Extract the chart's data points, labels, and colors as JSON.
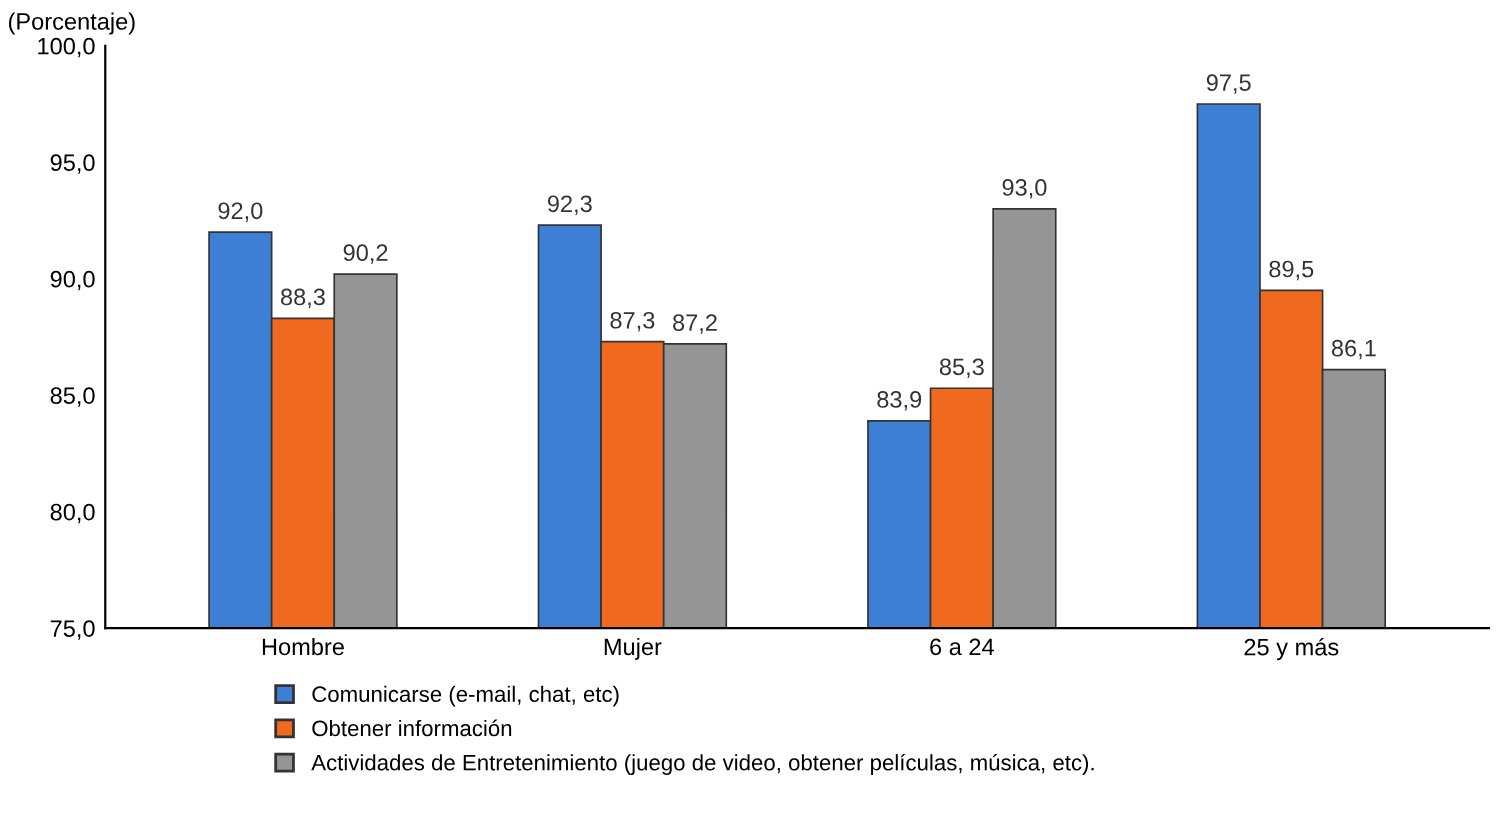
{
  "chart_data": {
    "type": "bar",
    "ylabel": "(Porcentaje)",
    "categories": [
      "Hombre",
      "Mujer",
      "6 a 24",
      "25 y más"
    ],
    "series": [
      {
        "name": "Comunicarse (e-mail, chat, etc)",
        "color": "#3d7fd4",
        "values": [
          92.0,
          92.3,
          83.9,
          97.5
        ],
        "value_labels": [
          "92,0",
          "92,3",
          "83,9",
          "97,5"
        ]
      },
      {
        "name": "Obtener información",
        "color": "#f0691e",
        "values": [
          88.3,
          87.3,
          85.3,
          89.5
        ],
        "value_labels": [
          "88,3",
          "87,3",
          "85,3",
          "89,5"
        ]
      },
      {
        "name": "Actividades de Entretenimiento (juego de video, obtener películas, música, etc).",
        "color": "#959595",
        "values": [
          90.2,
          87.2,
          93.0,
          86.1
        ],
        "value_labels": [
          "90,2",
          "87,2",
          "93,0",
          "86,1"
        ]
      }
    ],
    "ylim": [
      75,
      100
    ],
    "yticks": [
      {
        "value": 75,
        "label": "75,0"
      },
      {
        "value": 80,
        "label": "80,0"
      },
      {
        "value": 85,
        "label": "85,0"
      },
      {
        "value": 90,
        "label": "90,0"
      },
      {
        "value": 95,
        "label": "95,0"
      },
      {
        "value": 100,
        "label": "100,0"
      }
    ],
    "grid": false,
    "legend": "bottom"
  }
}
